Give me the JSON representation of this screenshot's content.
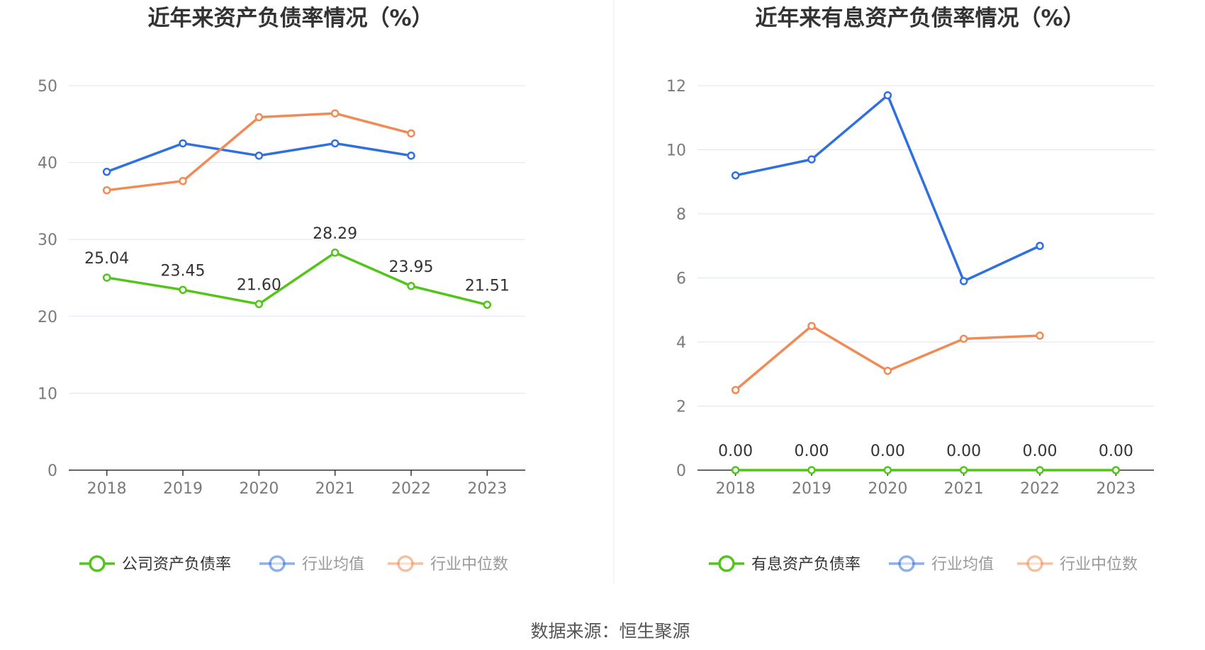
{
  "source": "数据来源：恒生聚源",
  "chart_data": [
    {
      "type": "line",
      "title": "近年来资产负债率情况（%）",
      "categories": [
        "2018",
        "2019",
        "2020",
        "2021",
        "2022",
        "2023"
      ],
      "ylim": [
        0,
        50
      ],
      "yticks": [
        0,
        10,
        20,
        30,
        40,
        50
      ],
      "grid": true,
      "legend_position": "bottom",
      "series": [
        {
          "name": "公司资产负债率",
          "color": "#52c41a",
          "values": [
            25.04,
            23.45,
            21.6,
            28.29,
            23.95,
            21.51
          ],
          "labels": [
            "25.04",
            "23.45",
            "21.60",
            "28.29",
            "23.95",
            "21.51"
          ],
          "show_labels": true,
          "legend_active": true
        },
        {
          "name": "行业均值",
          "color": "#2f6fdf",
          "values": [
            38.8,
            42.5,
            40.9,
            42.5,
            40.9,
            null
          ],
          "show_labels": false,
          "legend_active": false
        },
        {
          "name": "行业中位数",
          "color": "#f08b55",
          "values": [
            36.4,
            37.6,
            45.9,
            46.4,
            43.8,
            null
          ],
          "show_labels": false,
          "legend_active": false
        }
      ]
    },
    {
      "type": "line",
      "title": "近年来有息资产负债率情况（%）",
      "categories": [
        "2018",
        "2019",
        "2020",
        "2021",
        "2022",
        "2023"
      ],
      "ylim": [
        0,
        12
      ],
      "yticks": [
        0,
        2,
        4,
        6,
        8,
        10,
        12
      ],
      "grid": true,
      "legend_position": "bottom",
      "series": [
        {
          "name": "有息资产负债率",
          "color": "#52c41a",
          "values": [
            0.0,
            0.0,
            0.0,
            0.0,
            0.0,
            0.0
          ],
          "labels": [
            "0.00",
            "0.00",
            "0.00",
            "0.00",
            "0.00",
            "0.00"
          ],
          "show_labels": true,
          "legend_active": true
        },
        {
          "name": "行业均值",
          "color": "#2f6fdf",
          "values": [
            9.2,
            9.7,
            11.7,
            5.9,
            7.0,
            null
          ],
          "show_labels": false,
          "legend_active": false
        },
        {
          "name": "行业中位数",
          "color": "#f08b55",
          "values": [
            2.5,
            4.5,
            3.1,
            4.1,
            4.2,
            null
          ],
          "show_labels": false,
          "legend_active": false
        }
      ]
    }
  ]
}
